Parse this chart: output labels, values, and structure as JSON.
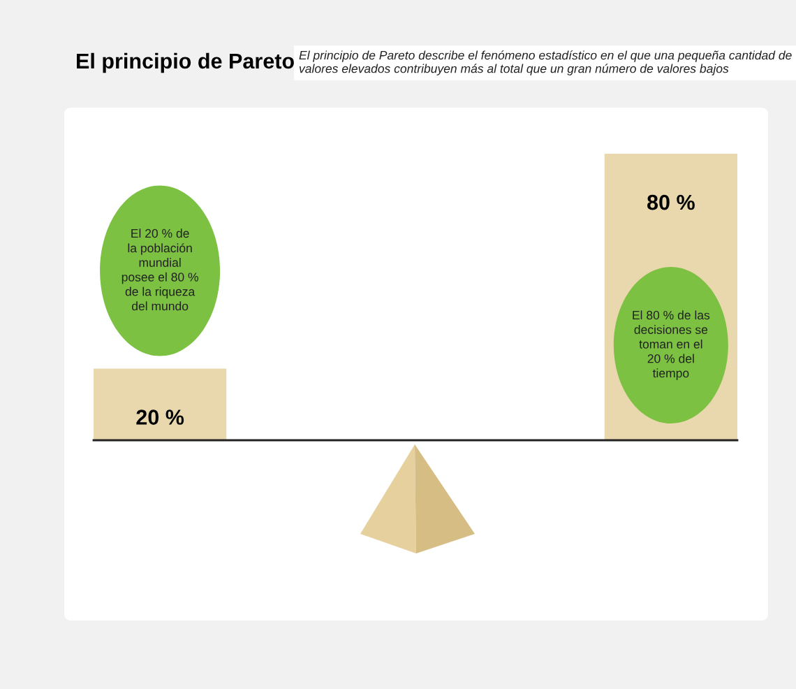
{
  "chart_data": {
    "type": "bar",
    "title": "El principio de Pareto",
    "subtitle": "El principio de Pareto describe el fenómeno estadístico en el que una pequeña cantidad de valores elevados contribuyen más al total que un gran número de valores bajos",
    "categories": [
      null,
      null
    ],
    "series": [
      {
        "color": "#e9d7ad",
        "values": [
          20,
          80
        ],
        "value_labels": [
          "20 %",
          "80 %"
        ]
      }
    ],
    "annotations": [
      "El 20 % de\nla población\nmundial\nposee el 80 %\nde la riqueza\ndel mundo",
      "El 80 % de las\ndecisiones se\ntoman en el\n20 % del\ntiempo"
    ],
    "grid": false,
    "legend": false
  }
}
